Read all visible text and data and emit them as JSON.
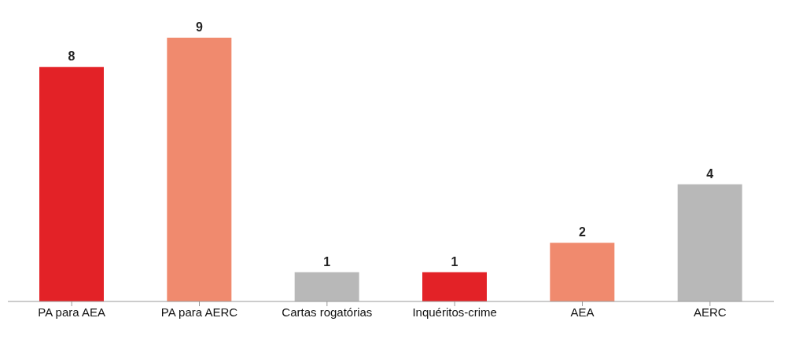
{
  "chart_data": {
    "type": "bar",
    "categories": [
      "PA para AEA",
      "PA para AERC",
      "Cartas rogatórias",
      "Inquéritos-crime",
      "AEA",
      "AERC"
    ],
    "values": [
      8,
      9,
      1,
      1,
      2,
      4
    ],
    "colors": [
      "#e32227",
      "#f08a6e",
      "#b8b8b8",
      "#e32227",
      "#f08a6e",
      "#b8b8b8"
    ],
    "data_labels": true
  }
}
